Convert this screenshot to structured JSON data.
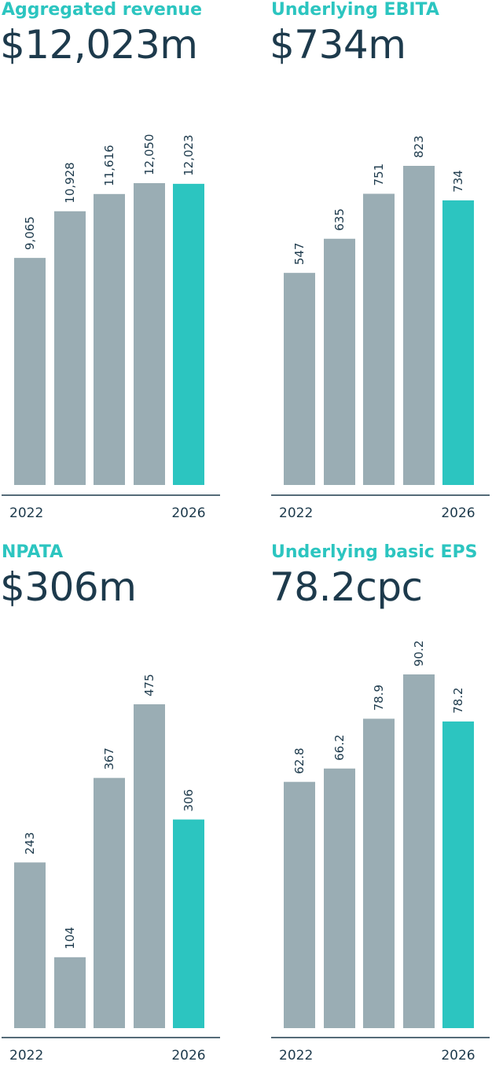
{
  "colors": {
    "bar": "#9aadb4",
    "highlight": "#2cc5c0",
    "text": "#1d3a4c",
    "axis": "#1d3a4c"
  },
  "panels": [
    {
      "title": "Aggregated revenue",
      "headline": "$12,023m"
    },
    {
      "title": "Underlying EBITA",
      "headline": "$734m"
    },
    {
      "title": "NPATA",
      "headline": "$306m"
    },
    {
      "title": "Underlying basic EPS",
      "headline": "78.2cpc"
    }
  ],
  "chart_data": [
    {
      "type": "bar",
      "title": "Aggregated revenue",
      "categories": [
        "2022",
        "",
        "",
        "",
        "2026"
      ],
      "values": [
        9065,
        10928,
        11616,
        12050,
        12023
      ],
      "labels": [
        "9,065",
        "10,928",
        "11,616",
        "12,050",
        "12,023"
      ],
      "highlight_index": 4,
      "ylim": [
        0,
        12050
      ],
      "grid": false
    },
    {
      "type": "bar",
      "title": "Underlying EBITA",
      "categories": [
        "2022",
        "",
        "",
        "",
        "2026"
      ],
      "values": [
        547,
        635,
        751,
        823,
        734
      ],
      "labels": [
        "547",
        "635",
        "751",
        "823",
        "734"
      ],
      "highlight_index": 4,
      "ylim": [
        0,
        823
      ],
      "grid": false
    },
    {
      "type": "bar",
      "title": "NPATA",
      "categories": [
        "2022",
        "",
        "",
        "",
        "2026"
      ],
      "values": [
        243,
        104,
        367,
        475,
        306
      ],
      "labels": [
        "243",
        "104",
        "367",
        "475",
        "306"
      ],
      "highlight_index": 4,
      "ylim": [
        0,
        475
      ],
      "grid": false
    },
    {
      "type": "bar",
      "title": "Underlying basic EPS",
      "categories": [
        "2022",
        "",
        "",
        "",
        "2026"
      ],
      "values": [
        62.8,
        66.2,
        78.9,
        90.2,
        78.2
      ],
      "labels": [
        "62.8",
        "66.2",
        "78.9",
        "90.2",
        "78.2"
      ],
      "highlight_index": 4,
      "ylim": [
        0,
        90.2
      ],
      "grid": false
    }
  ]
}
